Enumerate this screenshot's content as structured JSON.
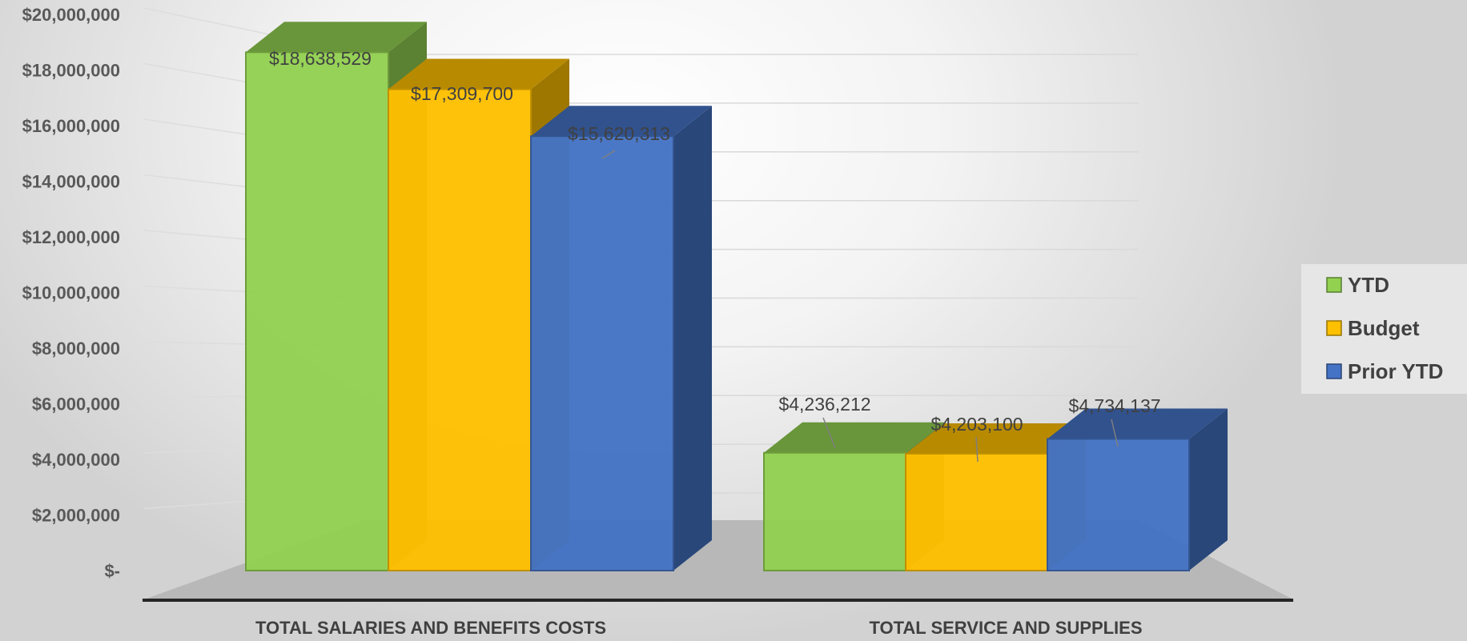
{
  "chart_data": {
    "type": "bar",
    "categories": [
      "TOTAL SALARIES AND BENEFITS COSTS",
      "TOTAL SERVICE AND SUPPLIES"
    ],
    "series": [
      {
        "name": "YTD",
        "values": [
          18638529,
          4236212
        ],
        "labels": [
          "$18,638,529",
          "$4,236,212"
        ],
        "color": "#92D050"
      },
      {
        "name": "Budget",
        "values": [
          17309700,
          4203100
        ],
        "labels": [
          "$17,309,700",
          "$4,203,100"
        ],
        "color": "#FFC000"
      },
      {
        "name": "Prior YTD",
        "values": [
          15620313,
          4734137
        ],
        "labels": [
          "$15,620,313",
          "$4,734,137"
        ],
        "color": "#4472C4"
      }
    ],
    "yticks": [
      "$-",
      "$2,000,000",
      "$4,000,000",
      "$6,000,000",
      "$8,000,000",
      "$10,000,000",
      "$12,000,000",
      "$14,000,000",
      "$16,000,000",
      "$18,000,000",
      "$20,000,000"
    ],
    "ylim": [
      0,
      20000000
    ],
    "legend_position": "right",
    "style": "3d-clustered-column"
  }
}
